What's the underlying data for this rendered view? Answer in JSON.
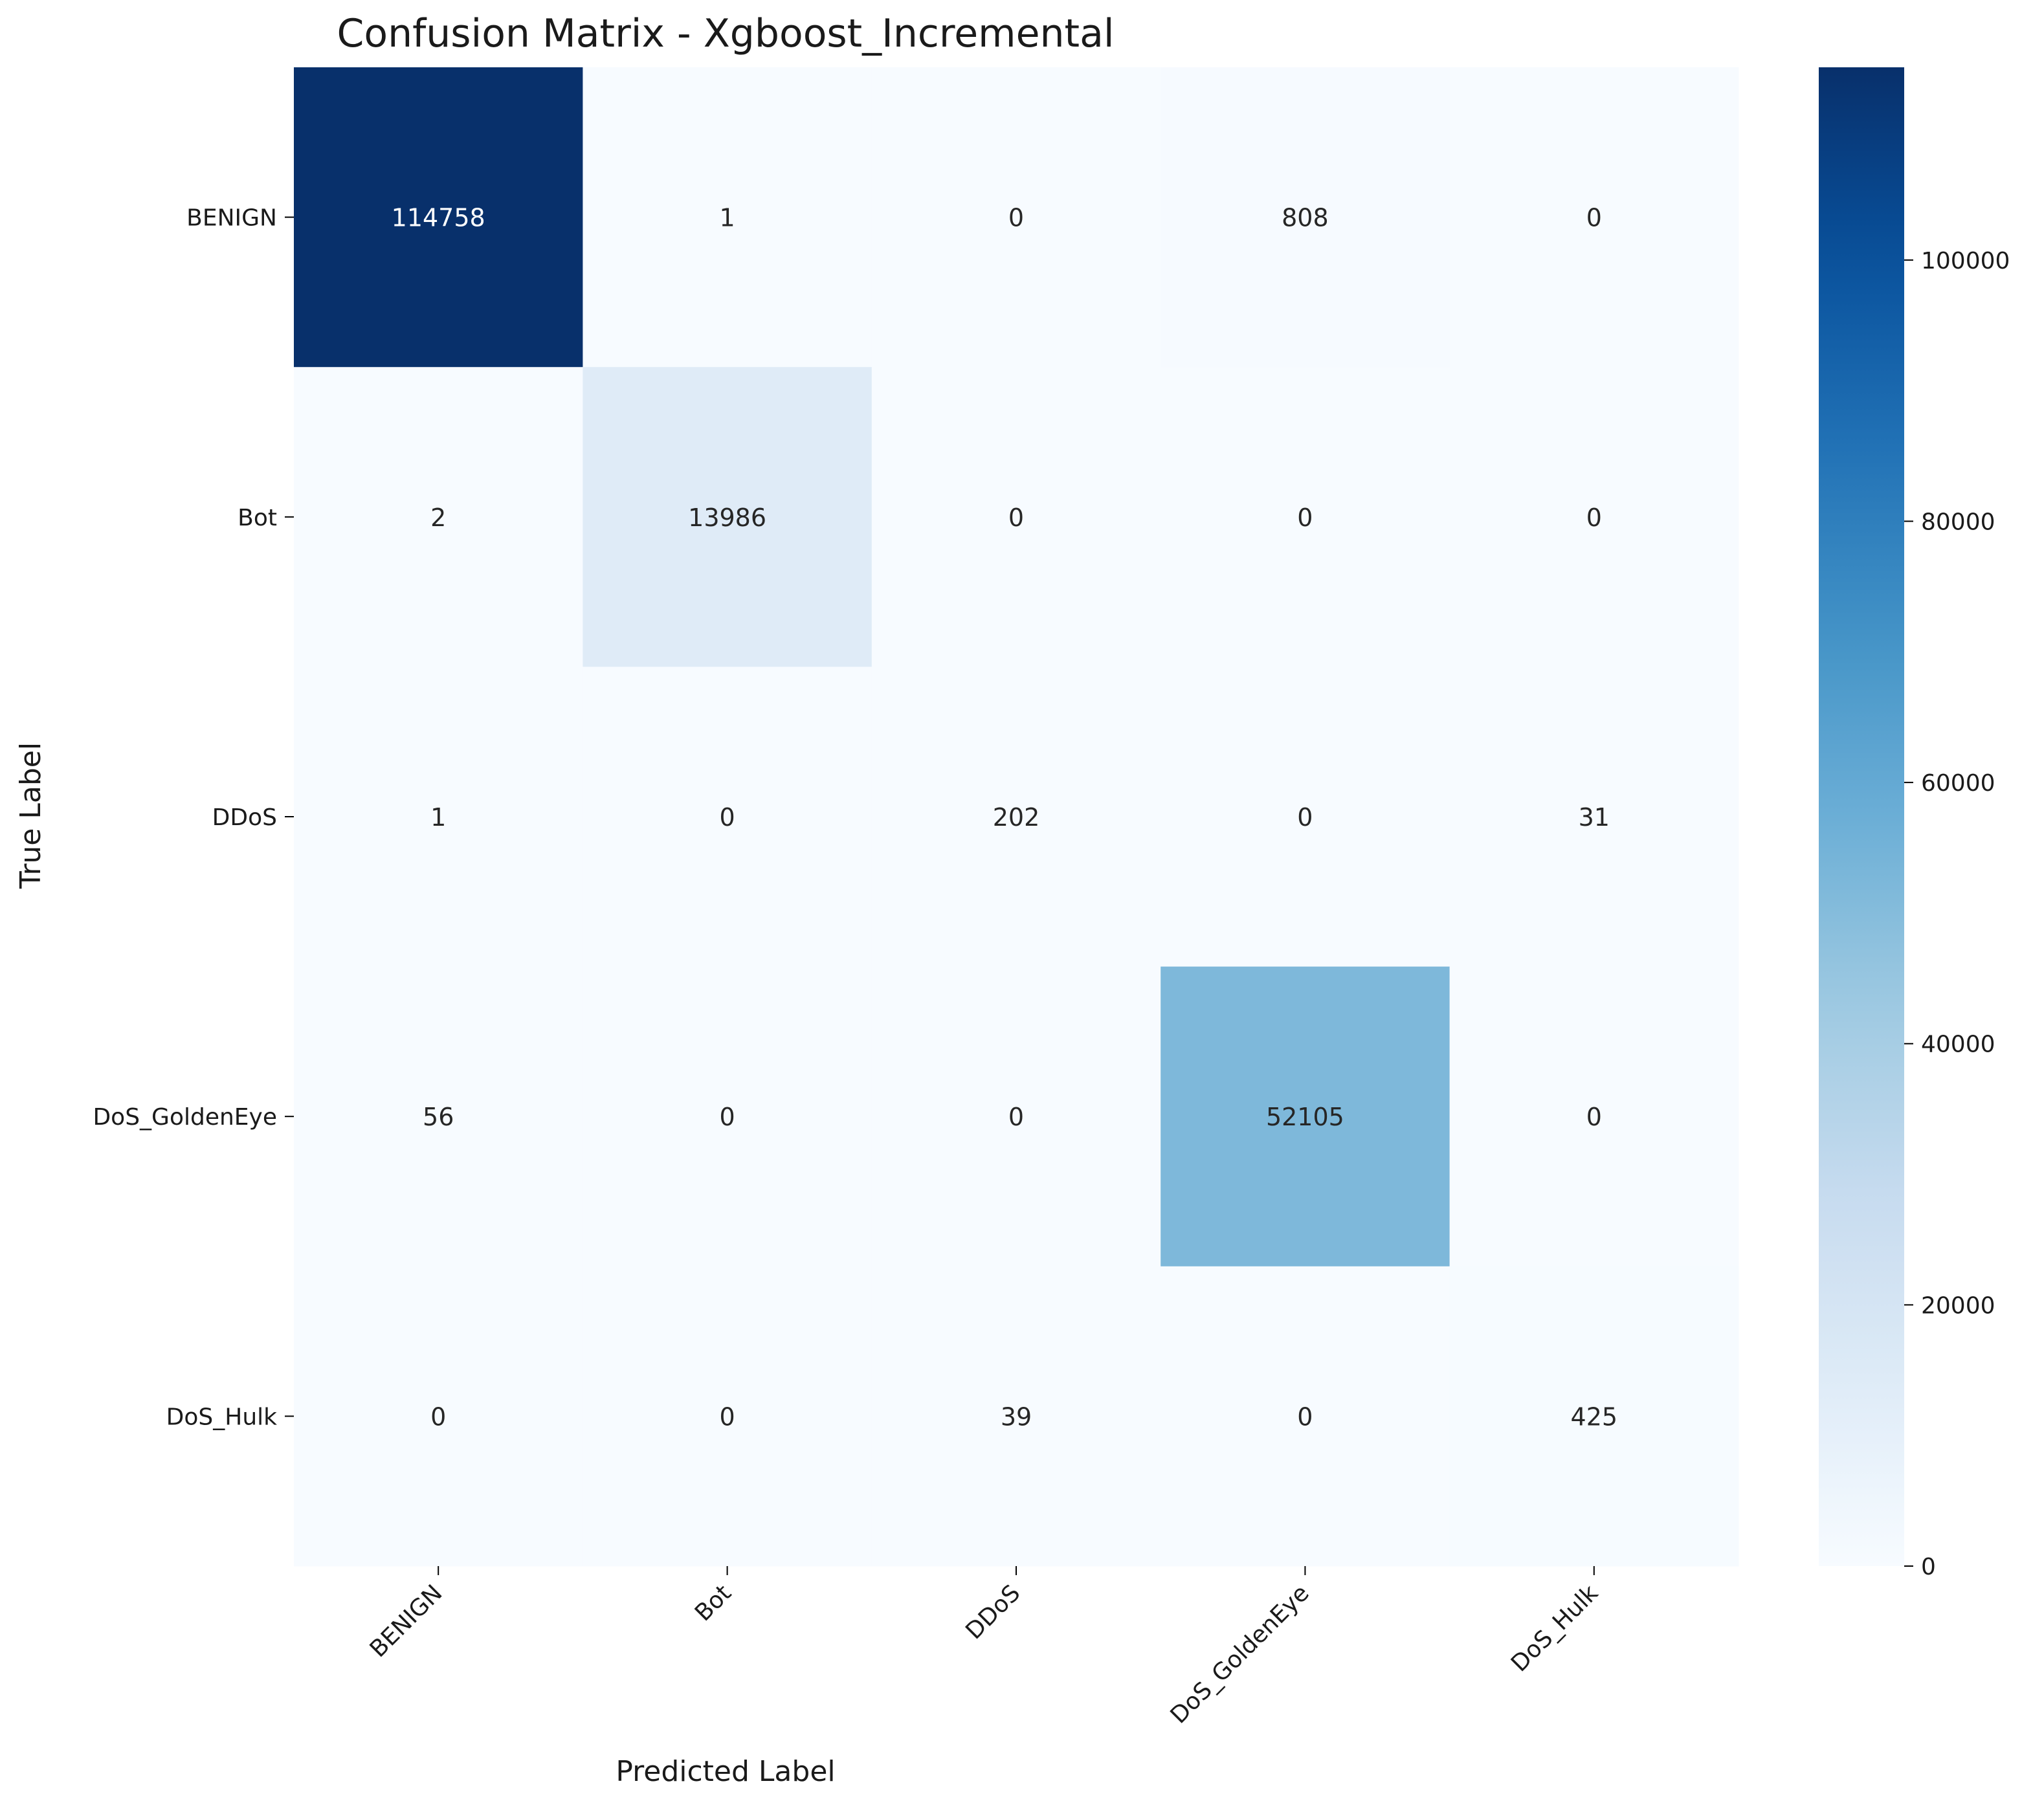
{
  "chart_data": {
    "type": "heatmap",
    "title": "Confusion Matrix - Xgboost_Incremental",
    "xlabel": "Predicted Label",
    "ylabel": "True Label",
    "x_categories": [
      "BENIGN",
      "Bot",
      "DDoS",
      "DoS_GoldenEye",
      "DoS_Hulk"
    ],
    "y_categories": [
      "BENIGN",
      "Bot",
      "DDoS",
      "DoS_GoldenEye",
      "DoS_Hulk"
    ],
    "values": [
      [
        114758,
        1,
        0,
        808,
        0
      ],
      [
        2,
        13986,
        0,
        0,
        0
      ],
      [
        1,
        0,
        202,
        0,
        31
      ],
      [
        56,
        0,
        0,
        52105,
        0
      ],
      [
        0,
        0,
        39,
        0,
        425
      ]
    ],
    "colormap": "Blues",
    "colorbar": {
      "range": [
        0,
        114758
      ],
      "ticks": [
        0,
        20000,
        40000,
        60000,
        80000,
        100000
      ]
    }
  }
}
